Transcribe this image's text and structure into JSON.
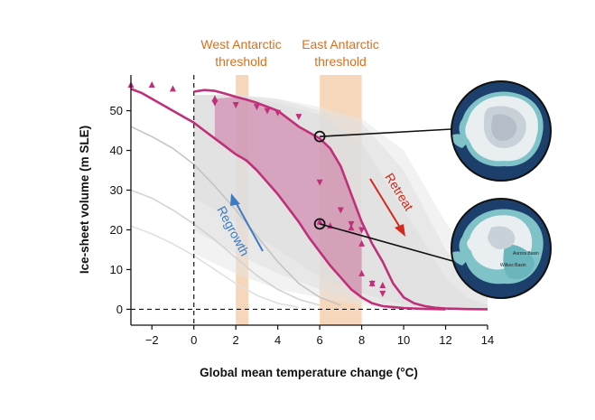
{
  "chart_data": {
    "type": "line",
    "title": "",
    "xlabel": "Global mean temperature change (°C)",
    "ylabel": "Ice-sheet volume (m SLE)",
    "xlim": [
      -3,
      14
    ],
    "ylim": [
      -4,
      59
    ],
    "xticks": [
      -2,
      0,
      2,
      4,
      6,
      8,
      10,
      12,
      14
    ],
    "yticks": [
      0,
      10,
      20,
      30,
      40,
      50
    ],
    "thresholds": [
      {
        "label_line1": "West Antarctic",
        "label_line2": "threshold",
        "range": [
          2.0,
          2.6
        ],
        "color": "#f3c9a4"
      },
      {
        "label_line1": "East Antarctic",
        "label_line2": "threshold",
        "range": [
          6.0,
          8.0
        ],
        "color": "#f3c9a4"
      }
    ],
    "series": [
      {
        "name": "Retreat",
        "color": "#c0307a",
        "x": [
          0,
          0.5,
          1,
          1.5,
          2,
          2.5,
          3,
          3.5,
          4,
          4.5,
          5,
          5.5,
          6,
          6.5,
          7,
          7.5,
          8,
          8.5,
          9,
          9.5,
          10,
          10.5,
          11,
          11.5,
          12,
          13,
          14
        ],
        "y": [
          54.8,
          55.2,
          55.0,
          54.3,
          53.5,
          52.8,
          52.0,
          51.0,
          50.0,
          48.0,
          46.0,
          44.5,
          43.0,
          40.5,
          36.0,
          29.0,
          22.0,
          16.5,
          12.0,
          6.5,
          3.0,
          1.5,
          0.8,
          0.4,
          0.2,
          0.05,
          0
        ]
      },
      {
        "name": "Regrowth",
        "color": "#c0307a",
        "x": [
          -3,
          -2.5,
          -2,
          -1.5,
          -1,
          -0.5,
          0,
          0.5,
          1,
          1.5,
          2,
          2.5,
          3,
          3.5,
          4,
          4.5,
          5,
          5.5,
          6,
          6.5,
          7,
          7.5,
          8,
          8.5,
          9,
          10,
          11,
          12
        ],
        "y": [
          55.5,
          54.5,
          53.0,
          51.5,
          50.0,
          48.5,
          47.0,
          45.0,
          43.0,
          41.0,
          39.0,
          37.5,
          35.0,
          32.0,
          29.0,
          25.5,
          22.0,
          18.0,
          14.5,
          11.0,
          8.0,
          5.0,
          3.0,
          1.5,
          0.8,
          0.3,
          0.1,
          0
        ]
      }
    ],
    "markers_up": [
      {
        "x": -3.0,
        "y": 56.5
      },
      {
        "x": -2.0,
        "y": 56.5
      },
      {
        "x": -1.0,
        "y": 55.5
      },
      {
        "x": 1.0,
        "y": 53.0
      },
      {
        "x": 6.0,
        "y": 22.0
      },
      {
        "x": 6.5,
        "y": 21.0
      },
      {
        "x": 7.5,
        "y": 20.5
      },
      {
        "x": 8.0,
        "y": 16.5
      },
      {
        "x": 8.0,
        "y": 9.0
      },
      {
        "x": 8.5,
        "y": 6.5
      },
      {
        "x": 9.0,
        "y": 6.0
      }
    ],
    "markers_down": [
      {
        "x": 1.0,
        "y": 52.0
      },
      {
        "x": 2.0,
        "y": 51.5
      },
      {
        "x": 3.0,
        "y": 51.0
      },
      {
        "x": 3.5,
        "y": 50.0
      },
      {
        "x": 4.0,
        "y": 49.5
      },
      {
        "x": 5.0,
        "y": 48.5
      },
      {
        "x": 6.0,
        "y": 32.0
      },
      {
        "x": 7.0,
        "y": 25.0
      },
      {
        "x": 7.5,
        "y": 21.5
      },
      {
        "x": 8.0,
        "y": 20.0
      },
      {
        "x": 8.5,
        "y": 6.5
      },
      {
        "x": 9.0,
        "y": 4.0
      }
    ],
    "hysteresis_fill": {
      "color": "#c0307a",
      "opacity": 0.35,
      "upper": {
        "x": [
          1,
          2,
          3,
          4,
          5,
          6,
          6.5,
          7,
          7.5,
          8
        ],
        "y": [
          53.0,
          53.5,
          52.0,
          50.0,
          46.0,
          43.0,
          40.5,
          36.0,
          29.0,
          22.0
        ]
      },
      "lower": {
        "x": [
          1,
          2,
          3,
          4,
          5,
          6,
          6.5,
          7,
          7.5,
          8
        ],
        "y": [
          43.0,
          39.0,
          35.0,
          29.0,
          22.0,
          14.5,
          11.0,
          8.0,
          5.0,
          3.0
        ]
      }
    },
    "uncertainty_bands": [
      {
        "color": "#cfcfcf",
        "opacity": 0.55,
        "x": [
          0,
          2,
          4,
          6,
          8,
          10,
          12,
          13,
          14
        ],
        "upper": [
          54,
          54,
          52,
          49,
          42,
          25,
          8,
          3,
          1
        ],
        "lower": [
          28,
          22,
          15,
          8,
          4,
          1,
          0,
          0,
          0
        ]
      },
      {
        "color": "#d8d8d8",
        "opacity": 0.5,
        "x": [
          0,
          2,
          4,
          6,
          8,
          10,
          12,
          14
        ],
        "upper": [
          54,
          54,
          53,
          50,
          47,
          35,
          15,
          3
        ],
        "lower": [
          20,
          14,
          9,
          5,
          2,
          0.5,
          0,
          0
        ]
      },
      {
        "color": "#e6e6e6",
        "opacity": 0.5,
        "x": [
          0,
          2,
          4,
          6,
          8,
          10,
          12,
          14
        ],
        "upper": [
          54,
          54,
          53,
          51,
          48,
          40,
          22,
          6
        ],
        "lower": [
          14,
          9,
          5,
          3,
          1,
          0.3,
          0,
          0
        ]
      }
    ],
    "background_curves": [
      {
        "color": "#c4c4c4",
        "x": [
          -3,
          -2,
          -1,
          0,
          1,
          2,
          3,
          4,
          5,
          6,
          7
        ],
        "y": [
          46,
          43.5,
          40.5,
          36.5,
          31,
          25,
          18.5,
          12,
          6.5,
          3,
          1
        ]
      },
      {
        "color": "#d3d3d3",
        "x": [
          -3,
          -2,
          -1,
          0,
          1,
          2,
          3,
          4,
          5,
          6
        ],
        "y": [
          30,
          28,
          25,
          21.5,
          17.5,
          13,
          8.5,
          5,
          2.5,
          1
        ]
      },
      {
        "color": "#e0e0e0",
        "x": [
          -3,
          -2,
          -1,
          0,
          1,
          2,
          3,
          4,
          5
        ],
        "y": [
          21,
          19,
          16.5,
          13.5,
          10,
          6.5,
          3.5,
          1.5,
          0.5
        ]
      }
    ],
    "callouts": [
      {
        "x": 6.0,
        "y": 43.5,
        "marker": "circle"
      },
      {
        "x": 6.0,
        "y": 21.5,
        "marker": "circle"
      }
    ],
    "annotations": {
      "retreat": "Retreat",
      "regrowth": "Regrowth"
    },
    "map_labels": {
      "aurora": "Aurora Basin",
      "wilkes": "Wilkes Basin"
    },
    "zero_line": {
      "style": "dashed",
      "y": 0
    },
    "vertical_line": {
      "style": "dashed",
      "x": 0
    }
  }
}
